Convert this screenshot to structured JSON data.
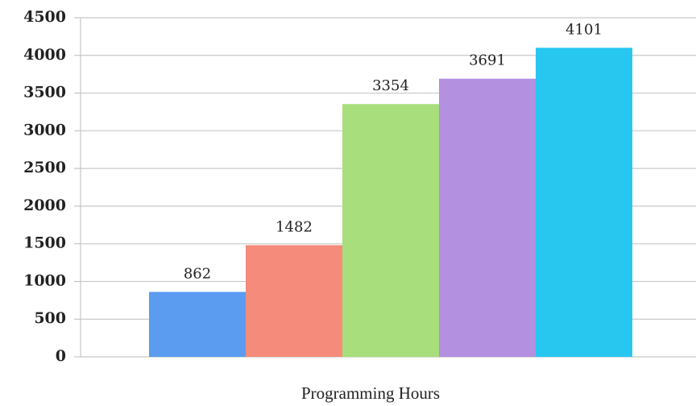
{
  "chart_data": {
    "type": "bar",
    "x_label": "Programming Hours",
    "values": [
      862,
      1482,
      3354,
      3691,
      4101
    ],
    "colors": [
      "#5b9cf0",
      "#f48b7b",
      "#a8de7c",
      "#b390e0",
      "#28c7f0"
    ],
    "ylim": [
      0,
      4500
    ],
    "yticks": [
      0,
      500,
      1000,
      1500,
      2000,
      2500,
      3000,
      3500,
      4000,
      4500
    ],
    "grid": true
  }
}
